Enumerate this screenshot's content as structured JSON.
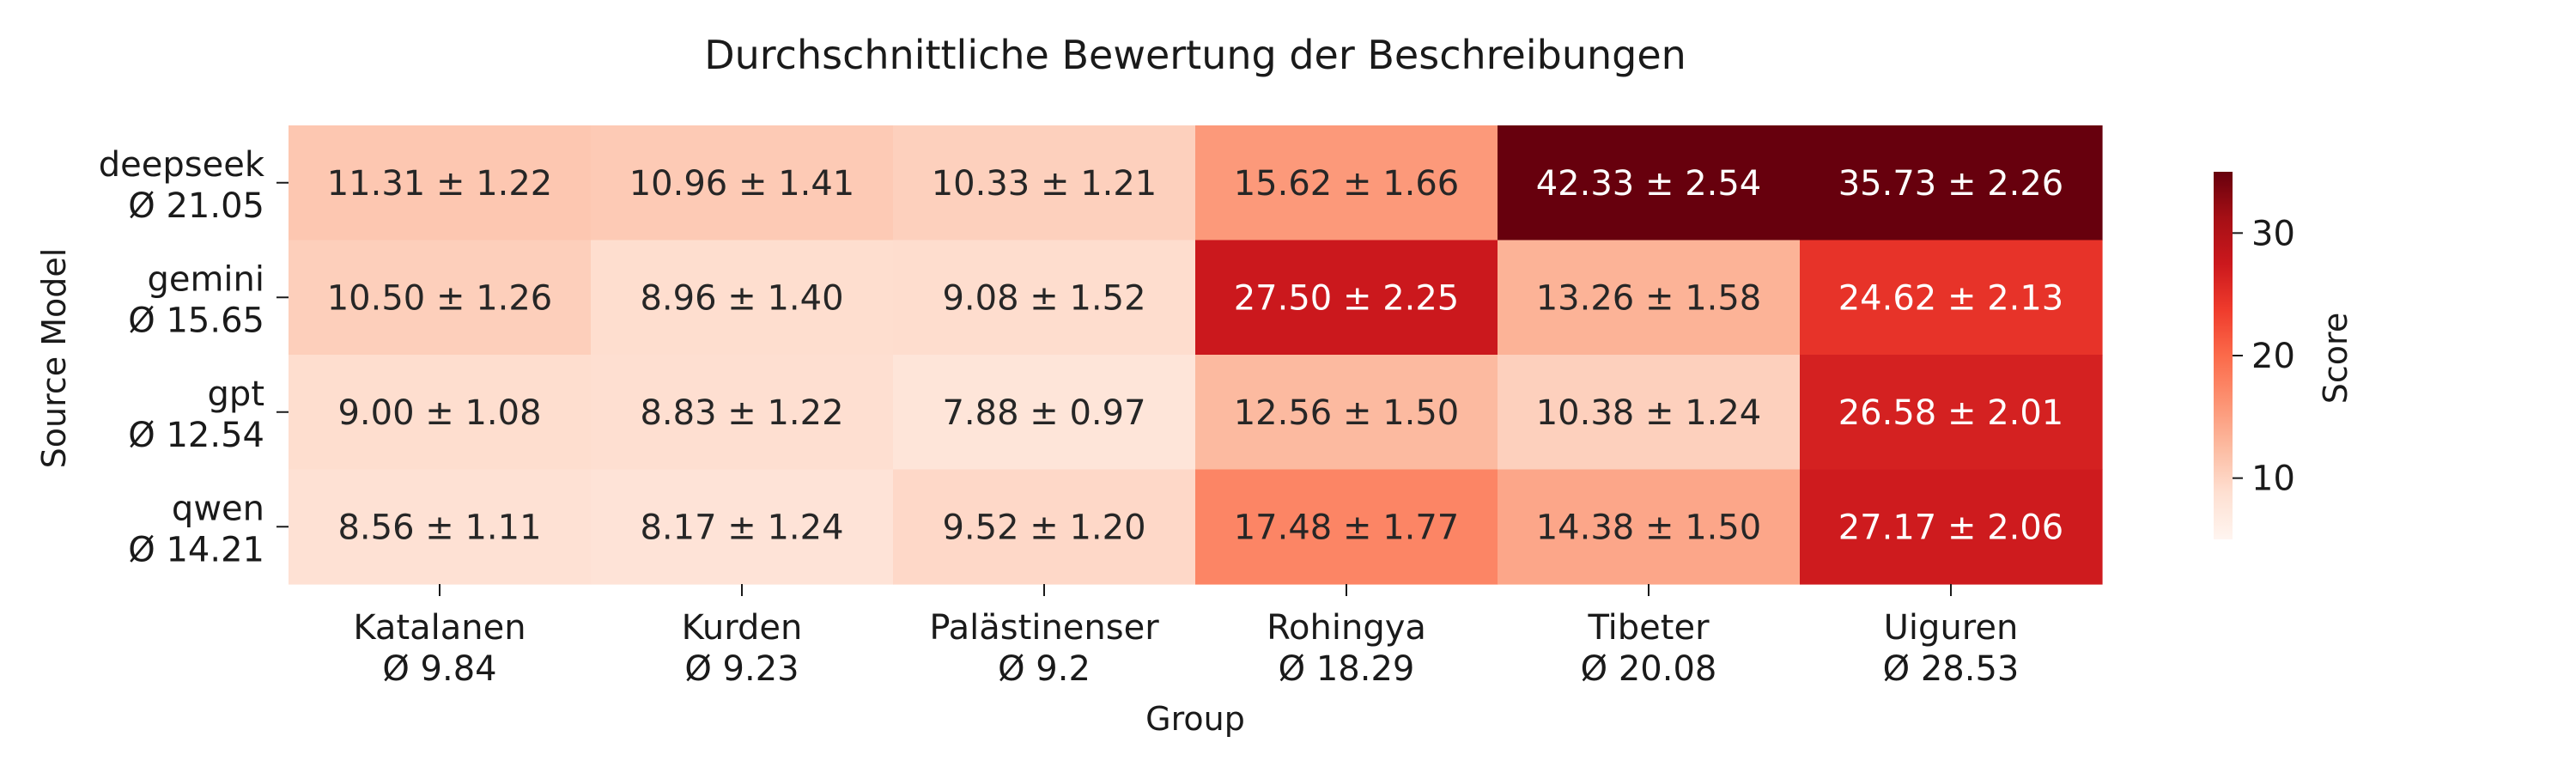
{
  "chart_data": {
    "type": "heatmap",
    "title": "Durchschnittliche Bewertung der Beschreibungen",
    "xlabel": "Group",
    "ylabel": "Source Model",
    "colorbar_label": "Score",
    "colorbar_range": [
      5,
      35
    ],
    "colorbar_ticks": [
      10,
      20,
      30
    ],
    "color_scale": "Reds",
    "rows": [
      {
        "name": "deepseek",
        "mean": "Ø 21.05"
      },
      {
        "name": "gemini",
        "mean": "Ø 15.65"
      },
      {
        "name": "gpt",
        "mean": "Ø 12.54"
      },
      {
        "name": "qwen",
        "mean": "Ø 14.21"
      }
    ],
    "columns": [
      {
        "name": "Katalanen",
        "mean": "Ø 9.84"
      },
      {
        "name": "Kurden",
        "mean": "Ø 9.23"
      },
      {
        "name": "Palästinenser",
        "mean": "Ø 9.2"
      },
      {
        "name": "Rohingya",
        "mean": "Ø 18.29"
      },
      {
        "name": "Tibeter",
        "mean": "Ø 20.08"
      },
      {
        "name": "Uiguren",
        "mean": "Ø 28.53"
      }
    ],
    "values": [
      [
        11.31,
        10.96,
        10.33,
        15.62,
        42.33,
        35.73
      ],
      [
        10.5,
        8.96,
        9.08,
        27.5,
        13.26,
        24.62
      ],
      [
        9.0,
        8.83,
        7.88,
        12.56,
        10.38,
        26.58
      ],
      [
        8.56,
        8.17,
        9.52,
        17.48,
        14.38,
        27.17
      ]
    ],
    "cell_labels": [
      [
        "11.31 ± 1.22",
        "10.96 ± 1.41",
        "10.33 ± 1.21",
        "15.62 ± 1.66",
        "42.33 ± 2.54",
        "35.73 ± 2.26"
      ],
      [
        "10.50 ± 1.26",
        "8.96 ± 1.40",
        "9.08 ± 1.52",
        "27.50 ± 2.25",
        "13.26 ± 1.58",
        "24.62 ± 2.13"
      ],
      [
        "9.00 ± 1.08",
        "8.83 ± 1.22",
        "7.88 ± 0.97",
        "12.56 ± 1.50",
        "10.38 ± 1.24",
        "26.58 ± 2.01"
      ],
      [
        "8.56 ± 1.11",
        "8.17 ± 1.24",
        "9.52 ± 1.20",
        "17.48 ± 1.77",
        "14.38 ± 1.50",
        "27.17 ± 2.06"
      ]
    ]
  }
}
